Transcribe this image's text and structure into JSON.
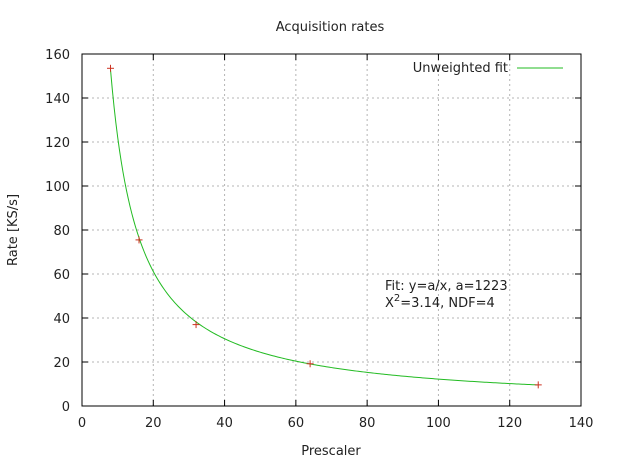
{
  "chart_data": {
    "type": "scatter",
    "title": "Acquisition rates",
    "xlabel": "Prescaler",
    "ylabel": "Rate [KS/s]",
    "xlim": [
      0,
      140
    ],
    "ylim": [
      0,
      160
    ],
    "xticks": [
      0,
      20,
      40,
      60,
      80,
      100,
      120,
      140
    ],
    "yticks": [
      0,
      20,
      40,
      60,
      80,
      100,
      120,
      140,
      160
    ],
    "grid": true,
    "legend_position": "top-right",
    "points": {
      "x": [
        8,
        16,
        32,
        64,
        128
      ],
      "y": [
        153.5,
        75.5,
        37,
        19.2,
        9.6
      ],
      "color": "#cc3322",
      "marker": "plus"
    },
    "fit": {
      "name": "Unweighted fit",
      "formula": "y=a/x",
      "a": 1223,
      "x_from": 8,
      "x_to": 128,
      "color": "#22bb22"
    },
    "annotation": {
      "line1": "Fit: y=a/x, a=1223",
      "chi_symbol": "X",
      "chi_exp": "2",
      "line2_rest": "=3.14, NDF=4"
    }
  }
}
